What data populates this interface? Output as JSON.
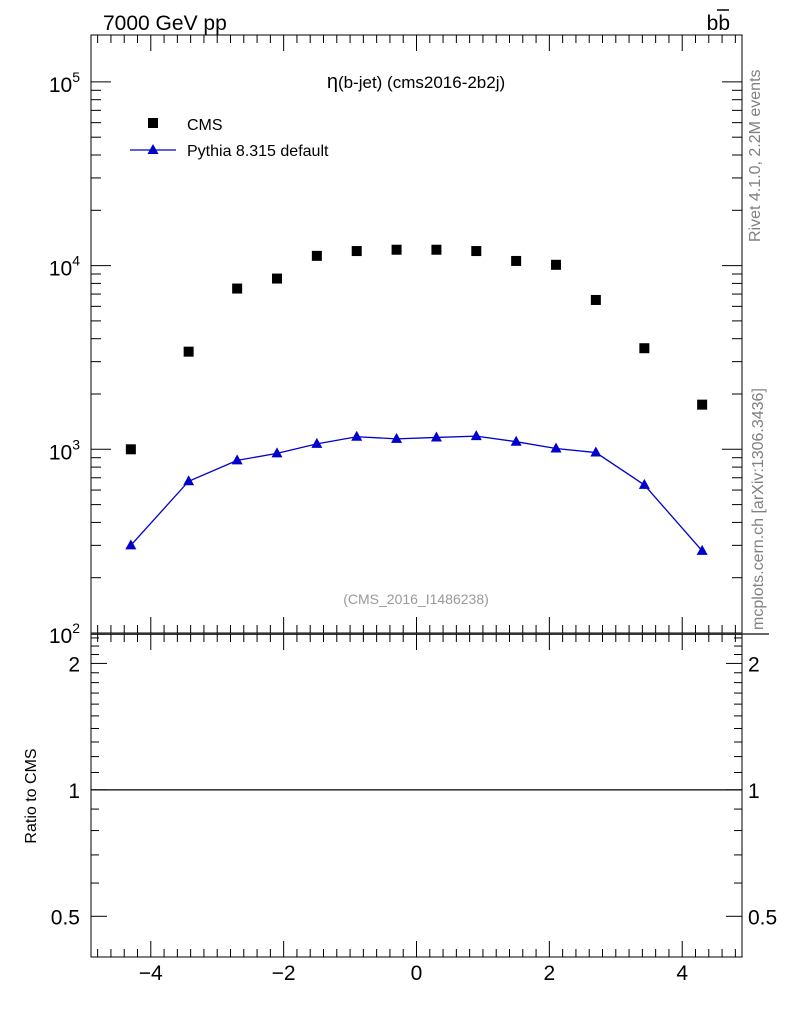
{
  "header": {
    "energy_label": "7000 GeV pp",
    "process_label": "bb",
    "side_label_rivet": "Rivet 4.1.0,  2.2M events",
    "side_label_source": "mcplots.cern.ch [arXiv:1306.3436]"
  },
  "chart_data": [
    {
      "type": "scatter",
      "title": "η(b-jet) (cms2016-2b2j)",
      "watermark": "(CMS_2016_I1486238)",
      "xlabel": "",
      "ylabel": "",
      "xlim": [
        -4.9,
        4.9
      ],
      "ylim": [
        100,
        180000
      ],
      "yscale": "log",
      "y_tick_labels": [
        "10^2",
        "10^3",
        "10^4",
        "10^5"
      ],
      "legend_position": "top-left",
      "legend": [
        "CMS",
        "Pythia 8.315 default"
      ],
      "series": [
        {
          "name": "CMS",
          "marker": "square",
          "color": "#000000",
          "x": [
            -4.3,
            -3.43,
            -2.7,
            -2.1,
            -1.5,
            -0.9,
            -0.3,
            0.3,
            0.9,
            1.5,
            2.1,
            2.7,
            3.43,
            4.3
          ],
          "y": [
            1000,
            3400,
            7500,
            8500,
            11300,
            12000,
            12200,
            12200,
            12000,
            10600,
            10100,
            6500,
            3550,
            1750
          ]
        },
        {
          "name": "Pythia 8.315 default",
          "marker": "triangle",
          "color": "#0000cc",
          "x": [
            -4.3,
            -3.43,
            -2.7,
            -2.1,
            -1.5,
            -0.9,
            -0.3,
            0.3,
            0.9,
            1.5,
            2.1,
            2.7,
            3.43,
            4.3
          ],
          "y": [
            300,
            670,
            870,
            950,
            1070,
            1170,
            1140,
            1160,
            1180,
            1100,
            1010,
            960,
            640,
            280
          ]
        }
      ]
    },
    {
      "type": "line",
      "xlabel": "",
      "ylabel": "Ratio to CMS",
      "xlim": [
        -4.9,
        4.9
      ],
      "ylim": [
        0.4,
        2.35
      ],
      "yscale": "log",
      "x_ticks": [
        -4,
        -2,
        0,
        2,
        4
      ],
      "x_tick_labels": [
        "−4",
        "−2",
        "0",
        "2",
        "4"
      ],
      "y_ticks": [
        0.5,
        1,
        2
      ],
      "y_tick_labels": [
        "0.5",
        "1",
        "2"
      ],
      "reference_line": 1
    }
  ]
}
